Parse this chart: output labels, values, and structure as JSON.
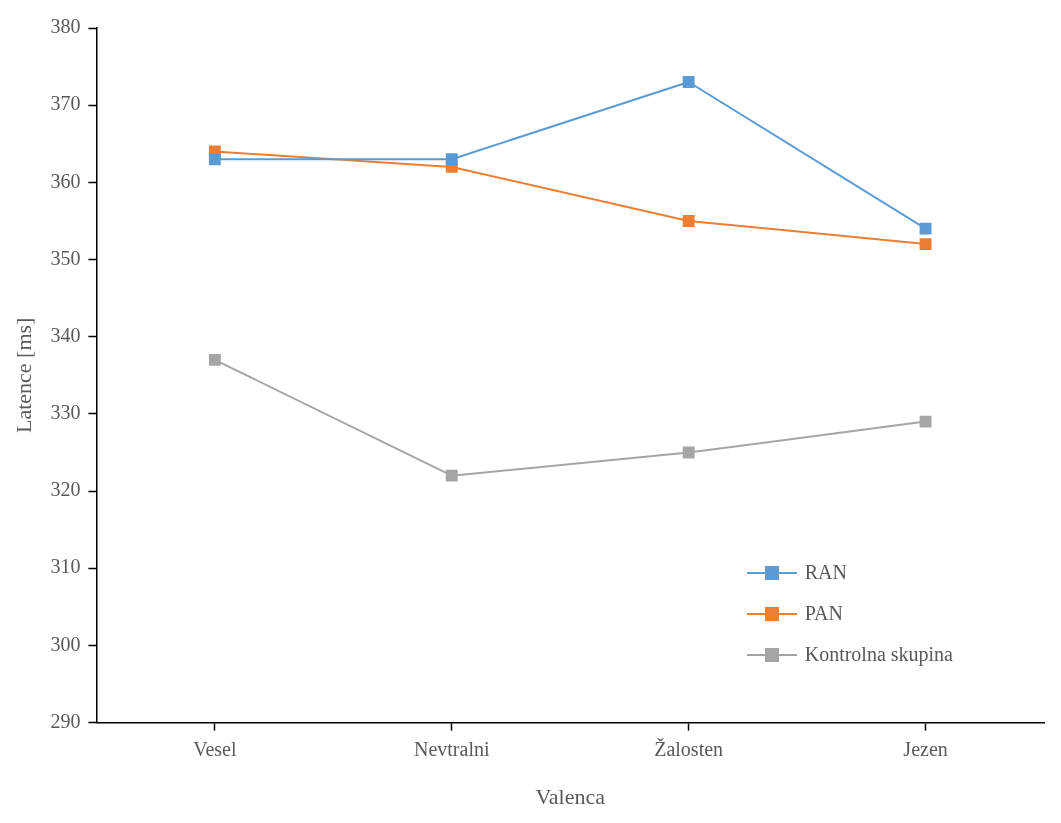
{
  "chart_data": {
    "type": "line",
    "xlabel": "Valenca",
    "ylabel": "Latence [ms]",
    "categories": [
      "Vesel",
      "Nevtralni",
      "Žalosten",
      "Jezen"
    ],
    "series": [
      {
        "name": "RAN",
        "color": "#5b9bd5",
        "values": [
          363,
          363,
          373,
          354
        ]
      },
      {
        "name": "PAN",
        "color": "#ed7d31",
        "values": [
          364,
          362,
          355,
          352
        ]
      },
      {
        "name": "Kontrolna skupina",
        "color": "#a5a5a5",
        "values": [
          337,
          322,
          325,
          329
        ]
      }
    ],
    "ylim": [
      290,
      380
    ],
    "yticks": [
      290,
      300,
      310,
      320,
      330,
      340,
      350,
      360,
      370,
      380
    ],
    "grid": false,
    "legend": "bottom right",
    "marker": "square",
    "line_style": "solid"
  }
}
